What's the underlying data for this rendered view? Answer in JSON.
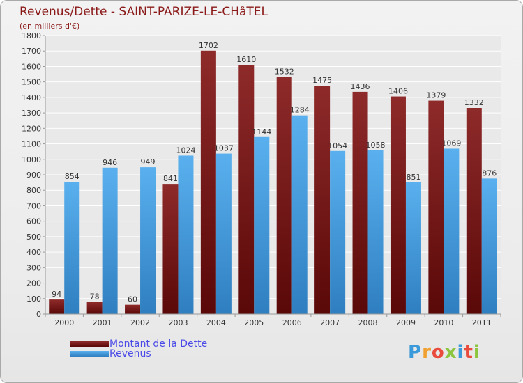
{
  "title": "Revenus/Dette - SAINT-PARIZE-LE-CHâTEL",
  "subtitle": "(en milliers d'€)",
  "logo_text": "Proxiti",
  "colors": {
    "dette": "#7a1c1c",
    "dette_dark": "#5a0a0a",
    "revenus": "#4fa6e6",
    "revenus_dark": "#2f7fc0",
    "text": "#333333",
    "title": "#8b1a1a",
    "legend_text": "#4a4ae8"
  },
  "chart_data": {
    "type": "bar",
    "categories": [
      "2000",
      "2001",
      "2002",
      "2003",
      "2004",
      "2005",
      "2006",
      "2007",
      "2008",
      "2009",
      "2010",
      "2011"
    ],
    "series": [
      {
        "name": "Montant de la Dette",
        "values": [
          94,
          78,
          60,
          841,
          1702,
          1610,
          1532,
          1475,
          1436,
          1406,
          1379,
          1332
        ]
      },
      {
        "name": "Revenus",
        "values": [
          854,
          946,
          949,
          1024,
          1037,
          1144,
          1284,
          1054,
          1058,
          851,
          1069,
          876
        ]
      }
    ],
    "yticks": [
      0,
      100,
      200,
      300,
      400,
      500,
      600,
      700,
      800,
      900,
      1000,
      1100,
      1200,
      1300,
      1400,
      1500,
      1600,
      1700,
      1800
    ],
    "ylim": [
      0,
      1800
    ],
    "grid": true,
    "legend_position": "bottom-left"
  }
}
